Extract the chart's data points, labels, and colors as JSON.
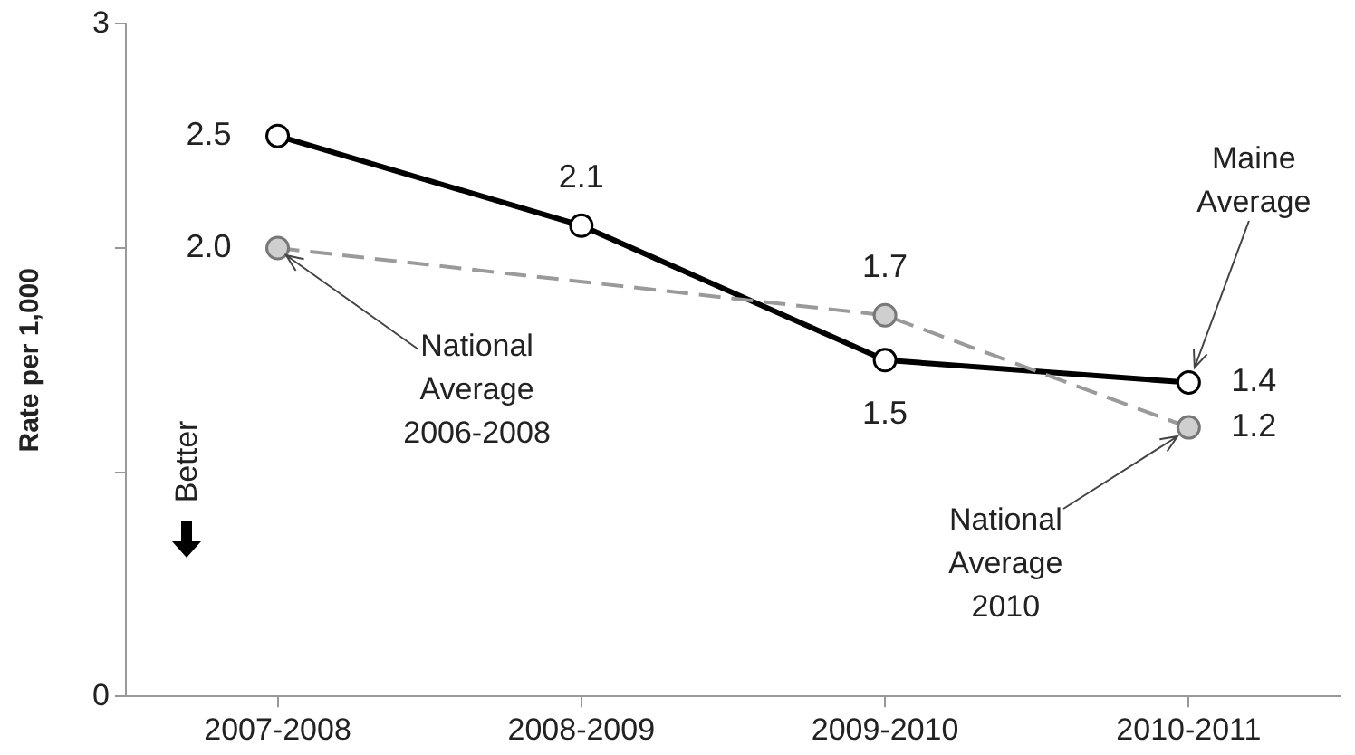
{
  "chart_data": {
    "type": "line",
    "ylabel": "Rate per 1,000",
    "categories": [
      "2007-2008",
      "2008-2009",
      "2009-2010",
      "2010-2011"
    ],
    "series": [
      {
        "color": "#000000",
        "values": [
          2.5,
          2.1,
          1.5,
          1.4
        ],
        "value_labels": [
          "2.5",
          "2.1",
          "1.5",
          "1.4"
        ],
        "line_style": "solid"
      },
      {
        "color": "#9a9a9a",
        "values": [
          2.0,
          null,
          1.7,
          1.2
        ],
        "value_labels": [
          "2.0",
          null,
          "1.7",
          "1.2"
        ],
        "line_style": "dashed"
      }
    ],
    "ylim": [
      0,
      3
    ],
    "yticks": [
      0,
      {
        "value": 1,
        "label": null
      },
      {
        "value": 2,
        "label": null
      },
      3
    ],
    "grid": false,
    "legend": false,
    "marker": "circle",
    "annotations": [
      {
        "text": "National Average 2006-2008",
        "x": "2007-2008",
        "y": 2.0
      },
      {
        "text": "National Average 2010",
        "x": "2010-2011",
        "y": 1.2
      },
      {
        "text": "Maine Average",
        "x": "2010-2011",
        "y": 1.4
      },
      "Better"
    ]
  }
}
